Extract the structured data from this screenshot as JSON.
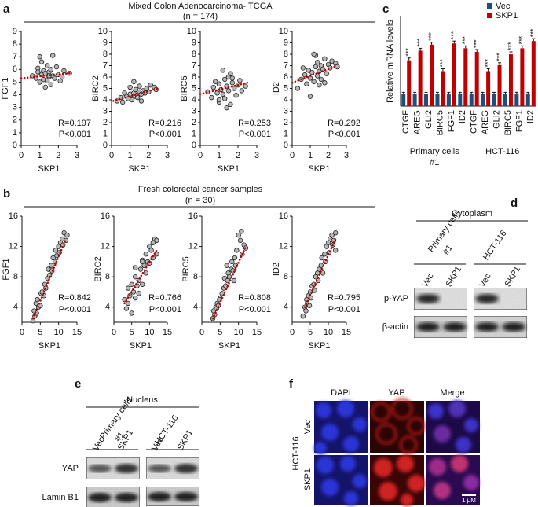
{
  "figure": {
    "panel_a": {
      "label": "a",
      "title": "Mixed Colon Adenocarcinoma- TCGA",
      "subtitle": "(n = 174)"
    },
    "panel_b": {
      "label": "b",
      "title": "Fresh colorectal cancer samples",
      "subtitle": "(n = 30)"
    },
    "panel_c": {
      "label": "c"
    },
    "panel_d": {
      "label": "d",
      "title": "Cytoplasm",
      "group_1": [
        "Primary cells",
        "#1"
      ],
      "group_2": "HCT-116",
      "lanes": [
        "Vec",
        "SKP1",
        "Vec",
        "SKP1"
      ],
      "rows": [
        "p-YAP",
        "β-actin"
      ]
    },
    "panel_e": {
      "label": "e",
      "title": "Nucleus",
      "group_1": [
        "Primary cells",
        "#1"
      ],
      "group_2": "HCT-116",
      "lanes": [
        "Vec",
        "SKP1",
        "Vec",
        "SKP1"
      ],
      "rows": [
        "YAP",
        "Lamin B1"
      ]
    },
    "panel_f": {
      "label": "f",
      "columns": [
        "DAPI",
        "YAP",
        "Merge"
      ],
      "rows": [
        "Vec",
        "SKP1"
      ],
      "cell_line": "HCT-116",
      "scale_bar": "1 μM"
    }
  },
  "chart_data": [
    {
      "type": "scatter",
      "xlabel": "SKP1",
      "ylabel": "FGF1",
      "xlim": [
        0,
        3
      ],
      "xticks": [
        0,
        1,
        2,
        3
      ],
      "ylim": [
        0,
        9
      ],
      "yticks": [
        0,
        1,
        2,
        3,
        4,
        5,
        6,
        7,
        8,
        9
      ],
      "x": [
        0.6,
        0.8,
        0.9,
        1.0,
        1.1,
        1.2,
        1.2,
        1.3,
        1.4,
        1.4,
        1.5,
        1.5,
        1.6,
        1.6,
        1.7,
        1.8,
        1.9,
        2.0,
        2.1,
        2.3,
        2.6,
        1.0,
        1.3,
        1.7,
        1.5,
        0.9,
        2.2,
        1.1
      ],
      "y": [
        5.5,
        5.3,
        6.1,
        5.0,
        5.6,
        5.9,
        5.2,
        5.7,
        5.1,
        6.3,
        5.4,
        5.8,
        4.8,
        6.0,
        5.5,
        5.3,
        6.2,
        5.6,
        5.1,
        5.9,
        5.7,
        7.0,
        4.6,
        7.1,
        5.5,
        5.8,
        5.4,
        6.6
      ],
      "trend_x": [
        0,
        2.6
      ],
      "trend_y": [
        5.3,
        5.7
      ],
      "trend_color": "#c00000",
      "annotations": [
        "R=0.197",
        "P<0.001"
      ]
    },
    {
      "type": "scatter",
      "xlabel": "SKP1",
      "ylabel": "BIRC2",
      "xlim": [
        0,
        3
      ],
      "xticks": [
        0,
        1,
        2,
        3
      ],
      "ylim": [
        0,
        10
      ],
      "yticks": [
        0,
        1,
        2,
        3,
        4,
        5,
        6,
        7,
        8,
        9,
        10
      ],
      "x": [
        0.3,
        0.5,
        0.6,
        0.8,
        0.9,
        1.0,
        1.1,
        1.2,
        1.3,
        1.3,
        1.4,
        1.5,
        1.5,
        1.6,
        1.7,
        1.8,
        1.9,
        2.0,
        2.1,
        2.3,
        1.2,
        0.7,
        1.6,
        1.0,
        2.4,
        1.4
      ],
      "y": [
        3.9,
        4.2,
        3.8,
        4.3,
        4.1,
        4.5,
        4.0,
        4.6,
        4.3,
        4.9,
        4.4,
        4.7,
        5.2,
        4.5,
        4.8,
        4.6,
        5.0,
        4.7,
        5.3,
        5.1,
        5.6,
        4.6,
        3.9,
        5.1,
        4.9,
        4.2
      ],
      "trend_x": [
        0.1,
        2.5
      ],
      "trend_y": [
        3.9,
        5.0
      ],
      "trend_color": "#c00000",
      "annotations": [
        "R=0.216",
        "P<0.001"
      ]
    },
    {
      "type": "scatter",
      "xlabel": "SKP1",
      "ylabel": "BIRC5",
      "xlim": [
        0,
        3
      ],
      "xticks": [
        0,
        1,
        2,
        3
      ],
      "ylim": [
        0,
        10
      ],
      "yticks": [
        0,
        1,
        2,
        3,
        4,
        5,
        6,
        7,
        8,
        9,
        10
      ],
      "x": [
        0.4,
        0.6,
        0.7,
        0.9,
        1.0,
        1.0,
        1.1,
        1.2,
        1.3,
        1.3,
        1.4,
        1.5,
        1.5,
        1.6,
        1.7,
        1.8,
        1.9,
        2.0,
        2.1,
        2.4,
        1.2,
        1.6,
        0.8,
        1.4,
        2.2,
        1.0,
        1.7
      ],
      "y": [
        4.7,
        4.2,
        5.1,
        4.6,
        5.4,
        3.8,
        4.9,
        4.5,
        5.8,
        4.1,
        5.2,
        4.8,
        6.0,
        3.6,
        5.5,
        5.0,
        4.4,
        5.3,
        5.7,
        5.2,
        6.6,
        6.3,
        5.6,
        3.3,
        4.8,
        4.0,
        5.9
      ],
      "trend_x": [
        0,
        2.5
      ],
      "trend_y": [
        4.5,
        5.5
      ],
      "trend_color": "#c00000",
      "annotations": [
        "R=0.253",
        "P<0.001"
      ]
    },
    {
      "type": "scatter",
      "xlabel": "SKP1",
      "ylabel": "ID2",
      "xlim": [
        0,
        3
      ],
      "xticks": [
        0,
        1,
        2,
        3
      ],
      "ylim": [
        0,
        10
      ],
      "yticks": [
        0,
        1,
        2,
        3,
        4,
        5,
        6,
        7,
        8,
        9,
        10
      ],
      "x": [
        0.3,
        0.5,
        0.7,
        0.8,
        0.9,
        1.0,
        1.1,
        1.2,
        1.3,
        1.4,
        1.4,
        1.5,
        1.6,
        1.6,
        1.7,
        1.8,
        1.9,
        2.0,
        2.1,
        2.2,
        2.4,
        1.0,
        1.3,
        1.5,
        1.8,
        0.6,
        2.5,
        1.2
      ],
      "y": [
        5.0,
        5.8,
        6.2,
        5.4,
        6.6,
        5.9,
        6.4,
        5.6,
        6.9,
        6.1,
        7.3,
        6.5,
        5.8,
        7.0,
        6.7,
        7.6,
        6.3,
        7.1,
        6.8,
        7.4,
        7.2,
        4.3,
        7.9,
        5.3,
        5.5,
        6.8,
        6.9,
        8.0
      ],
      "trend_x": [
        0,
        2.5
      ],
      "trend_y": [
        5.5,
        7.0
      ],
      "trend_color": "#c00000",
      "annotations": [
        "R=0.292",
        "P<0.001"
      ]
    },
    {
      "type": "scatter",
      "xlabel": "SKP1",
      "ylabel": "FGF1",
      "xlim": [
        0,
        15
      ],
      "xticks": [
        0,
        5,
        10,
        15
      ],
      "ylim": [
        2,
        16
      ],
      "yticks": [
        4,
        8,
        12,
        16
      ],
      "x": [
        3,
        3.3,
        3.5,
        3.8,
        4,
        4.2,
        4.5,
        5,
        5.2,
        5.5,
        6,
        6.2,
        6.5,
        7,
        7.2,
        7.5,
        8,
        8.2,
        8.5,
        9,
        9.2,
        9.5,
        10,
        10.2,
        10.5,
        11,
        11.2,
        11.5,
        12,
        12.3
      ],
      "y": [
        2.2,
        3.5,
        2.8,
        4.5,
        3.2,
        5,
        4,
        4.2,
        5.8,
        6,
        5.5,
        7,
        6.5,
        7.8,
        9,
        8.2,
        9.5,
        8.8,
        10.5,
        10,
        11.5,
        10.8,
        12,
        11.2,
        12.5,
        13,
        12.2,
        13.8,
        12.8,
        13.5
      ],
      "trend_x": [
        3,
        12
      ],
      "trend_y": [
        2.5,
        13
      ],
      "trend_color": "#c00000",
      "annotations": [
        "R=0.842",
        "P<0.001"
      ]
    },
    {
      "type": "scatter",
      "xlabel": "SKP1",
      "ylabel": "BIRC2",
      "xlim": [
        0,
        15
      ],
      "xticks": [
        0,
        5,
        10,
        15
      ],
      "ylim": [
        2,
        16
      ],
      "yticks": [
        4,
        8,
        12,
        16
      ],
      "x": [
        3,
        3.5,
        4,
        4,
        4.5,
        5,
        5,
        5.5,
        6,
        6,
        6.5,
        7,
        7,
        7.5,
        8,
        8,
        8.5,
        9,
        9,
        9.5,
        10,
        10,
        10.5,
        11,
        11,
        11.5,
        12,
        12,
        8,
        6
      ],
      "y": [
        5,
        3.8,
        6.5,
        4.5,
        5.5,
        7,
        3.2,
        6,
        5.2,
        8,
        6.8,
        7.5,
        5.8,
        9,
        10.2,
        7,
        9.5,
        11,
        8.5,
        10,
        12,
        9.8,
        11.5,
        12.5,
        10.5,
        13,
        11,
        12.8,
        10,
        9.2
      ],
      "trend_x": [
        3,
        12
      ],
      "trend_y": [
        4.5,
        11.5
      ],
      "trend_color": "#c00000",
      "annotations": [
        "R=0.766",
        "P<0.001"
      ]
    },
    {
      "type": "scatter",
      "xlabel": "SKP1",
      "ylabel": "BIRC5",
      "xlim": [
        0,
        15
      ],
      "xticks": [
        0,
        5,
        10,
        15
      ],
      "ylim": [
        2,
        16
      ],
      "yticks": [
        4,
        8,
        12,
        16
      ],
      "x": [
        3,
        3.2,
        3.5,
        3.8,
        4,
        4.2,
        4.5,
        5,
        5.5,
        6,
        6.2,
        6.5,
        7,
        7.2,
        7.5,
        8,
        8.2,
        8.5,
        9,
        9.2,
        9.5,
        10,
        10.5,
        11,
        11.5,
        12,
        4.8,
        6.8,
        8.8,
        10.8
      ],
      "y": [
        2.5,
        3.5,
        3,
        4,
        3.8,
        4.5,
        4.2,
        5.2,
        5.8,
        6.5,
        7.8,
        6.8,
        7.5,
        8.5,
        8,
        9,
        10,
        8.8,
        10.5,
        9.5,
        11.5,
        13.5,
        12.8,
        11,
        12.2,
        11.8,
        5,
        9.5,
        7.5,
        14
      ],
      "trend_x": [
        3,
        12
      ],
      "trend_y": [
        2.5,
        12
      ],
      "trend_color": "#c00000",
      "annotations": [
        "R=0.808",
        "P<0.001"
      ]
    },
    {
      "type": "scatter",
      "xlabel": "SKP1",
      "ylabel": "ID2",
      "xlim": [
        0,
        15
      ],
      "xticks": [
        0,
        5,
        10,
        15
      ],
      "ylim": [
        2,
        16
      ],
      "yticks": [
        4,
        8,
        12,
        16
      ],
      "x": [
        3,
        3.5,
        3.8,
        4,
        4.2,
        4.5,
        5,
        5.2,
        5.5,
        6,
        6.2,
        6.5,
        7,
        7.2,
        7.5,
        8,
        8.2,
        8.5,
        9,
        9.2,
        9.5,
        10,
        10.2,
        10.5,
        11,
        11.2,
        11.5,
        12,
        12,
        4.8
      ],
      "y": [
        2.8,
        4,
        3.5,
        5,
        4.5,
        5.5,
        6,
        5.2,
        6.8,
        7,
        6.2,
        8,
        8.5,
        7.5,
        9,
        9.5,
        10.5,
        8.5,
        11,
        10,
        12,
        12.5,
        11.2,
        13,
        13.5,
        12.2,
        12.8,
        11.5,
        13.8,
        4.2
      ],
      "trend_x": [
        3.5,
        12
      ],
      "trend_y": [
        4,
        13
      ],
      "trend_color": "#c00000",
      "annotations": [
        "R=0.795",
        "P<0.001"
      ]
    },
    {
      "type": "bar",
      "ylabel": "Relative mRNA levels",
      "ylim": [
        0,
        6
      ],
      "categories": [
        "CTGF",
        "AREG",
        "GLI2",
        "BIRC5",
        "FGF1",
        "ID2",
        "CTGF",
        "AREG",
        "GLI2",
        "BIRC5",
        "FGF1",
        "ID2"
      ],
      "groups": [
        {
          "label": [
            "Primary cells",
            "#1"
          ]
        },
        {
          "label": [
            "HCT-116"
          ]
        }
      ],
      "series": [
        {
          "name": "Vec",
          "color": "#1f4e79",
          "values": [
            1,
            1,
            1,
            1,
            1,
            1,
            1,
            1,
            1,
            1,
            1,
            1
          ],
          "errors": [
            0.15,
            0.15,
            0.15,
            0.15,
            0.15,
            0.15,
            0.15,
            0.15,
            0.15,
            0.15,
            0.15,
            0.15
          ]
        },
        {
          "name": "SKP1",
          "color": "#c00000",
          "values": [
            3.8,
            4.6,
            5.1,
            2.9,
            5.2,
            4.8,
            4.5,
            2.9,
            3.4,
            4.3,
            4.8,
            5.4
          ],
          "errors": [
            0.2,
            0.2,
            0.2,
            0.2,
            0.2,
            0.2,
            0.2,
            0.2,
            0.2,
            0.2,
            0.2,
            0.2
          ],
          "annotations": [
            "***",
            "***",
            "***",
            "***",
            "***",
            "***",
            "***",
            "***",
            "***",
            "***",
            "***",
            "***"
          ]
        }
      ]
    }
  ]
}
